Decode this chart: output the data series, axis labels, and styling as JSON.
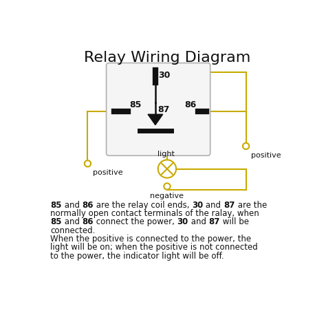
{
  "title": "Relay Wiring Diagram",
  "title_fontsize": 16,
  "bg_color": "#ffffff",
  "wire_color": "#c8aa00",
  "box_facecolor": "#f5f5f5",
  "box_edgecolor": "#b0b0b0",
  "pin_color": "#111111",
  "text_color": "#111111",
  "desc_lines": [
    [
      [
        "85",
        " and ",
        "86",
        " are the relay coil ends, ",
        "30",
        " and ",
        "87",
        " are the"
      ],
      [
        true,
        false,
        true,
        false,
        true,
        false,
        true,
        false
      ]
    ],
    [
      [
        "normally open contact terminals of the ralay, when"
      ],
      [
        false
      ]
    ],
    [
      [
        "85",
        " and ",
        "86",
        " connect the power, ",
        "30",
        " and ",
        "87",
        " will be"
      ],
      [
        true,
        false,
        true,
        false,
        true,
        false,
        true,
        false
      ]
    ],
    [
      [
        "connected."
      ],
      [
        false
      ]
    ],
    [
      [
        "When the positive is connected to the power, the"
      ],
      [
        false
      ]
    ],
    [
      [
        "light will be on; when the positive is not connected"
      ],
      [
        false
      ]
    ],
    [
      [
        "to the power, the indicator light will be off."
      ],
      [
        false
      ]
    ]
  ]
}
